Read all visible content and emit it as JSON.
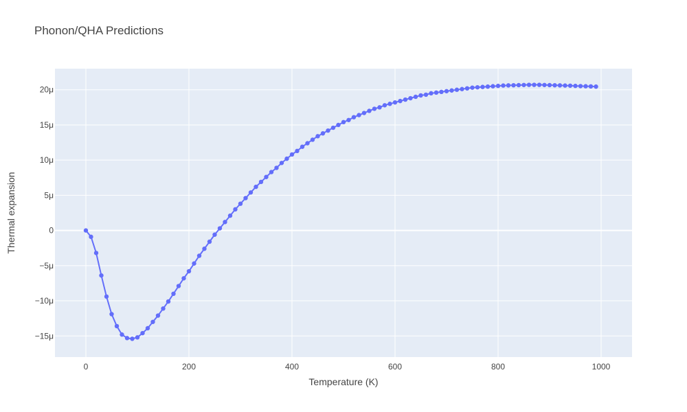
{
  "chart_data": {
    "type": "line",
    "title": "Phonon/QHA Predictions",
    "xlabel": "Temperature (K)",
    "ylabel": "Thermal expansion",
    "xlim": [
      -60,
      1060
    ],
    "ylim": [
      -1.8e-05,
      2.3e-05
    ],
    "x_ticks": [
      0,
      200,
      400,
      600,
      800,
      1000
    ],
    "x_tick_labels": [
      "0",
      "200",
      "400",
      "600",
      "800",
      "1000"
    ],
    "y_ticks": [
      -1.5e-05,
      -1e-05,
      -5e-06,
      0,
      5e-06,
      1e-05,
      1.5e-05,
      2e-05
    ],
    "y_tick_labels": [
      "−15μ",
      "−10μ",
      "−5μ",
      "0",
      "5μ",
      "10μ",
      "15μ",
      "20μ"
    ],
    "grid": true,
    "legend": false,
    "colors": {
      "series": "#636efa",
      "plot_bg": "#e5ecf6",
      "grid": "#ffffff"
    },
    "x": [
      0,
      10,
      20,
      30,
      40,
      50,
      60,
      70,
      80,
      90,
      100,
      110,
      120,
      130,
      140,
      150,
      160,
      170,
      180,
      190,
      200,
      210,
      220,
      230,
      240,
      250,
      260,
      270,
      280,
      290,
      300,
      310,
      320,
      330,
      340,
      350,
      360,
      370,
      380,
      390,
      400,
      410,
      420,
      430,
      440,
      450,
      460,
      470,
      480,
      490,
      500,
      510,
      520,
      530,
      540,
      550,
      560,
      570,
      580,
      590,
      600,
      610,
      620,
      630,
      640,
      650,
      660,
      670,
      680,
      690,
      700,
      710,
      720,
      730,
      740,
      750,
      760,
      770,
      780,
      790,
      800,
      810,
      820,
      830,
      840,
      850,
      860,
      870,
      880,
      890,
      900,
      910,
      920,
      930,
      940,
      950,
      960,
      970,
      980,
      990
    ],
    "series": [
      {
        "values": [
          0,
          -9e-07,
          -3.2e-06,
          -6.4e-06,
          -9.4e-06,
          -1.19e-05,
          -1.36e-05,
          -1.48e-05,
          -1.53e-05,
          -1.54e-05,
          -1.52e-05,
          -1.46e-05,
          -1.39e-05,
          -1.3e-05,
          -1.21e-05,
          -1.11e-05,
          -1.01e-05,
          -9e-06,
          -7.9e-06,
          -6.8e-06,
          -5.8e-06,
          -4.7e-06,
          -3.6e-06,
          -2.6e-06,
          -1.6e-06,
          -6e-07,
          3e-07,
          1.2e-06,
          2.1e-06,
          3e-06,
          3.8e-06,
          4.6e-06,
          5.4e-06,
          6.2e-06,
          6.9e-06,
          7.6e-06,
          8.3e-06,
          8.9e-06,
          9.6e-06,
          1.02e-05,
          1.08e-05,
          1.13e-05,
          1.19e-05,
          1.24e-05,
          1.29e-05,
          1.34e-05,
          1.38e-05,
          1.42e-05,
          1.46e-05,
          1.5e-05,
          1.54e-05,
          1.57e-05,
          1.61e-05,
          1.64e-05,
          1.67e-05,
          1.7e-05,
          1.73e-05,
          1.75e-05,
          1.78e-05,
          1.8e-05,
          1.82e-05,
          1.84e-05,
          1.86e-05,
          1.88e-05,
          1.9e-05,
          1.92e-05,
          1.93e-05,
          1.95e-05,
          1.96e-05,
          1.97e-05,
          1.98e-05,
          1.99e-05,
          2e-05,
          2.01e-05,
          2.02e-05,
          2.03e-05,
          2.035e-05,
          2.04e-05,
          2.045e-05,
          2.05e-05,
          2.055e-05,
          2.06e-05,
          2.062e-05,
          2.064e-05,
          2.066e-05,
          2.068e-05,
          2.07e-05,
          2.07e-05,
          2.07e-05,
          2.068e-05,
          2.066e-05,
          2.064e-05,
          2.062e-05,
          2.06e-05,
          2.058e-05,
          2.055e-05,
          2.052e-05,
          2.05e-05,
          2.048e-05,
          2.045e-05
        ]
      }
    ]
  }
}
